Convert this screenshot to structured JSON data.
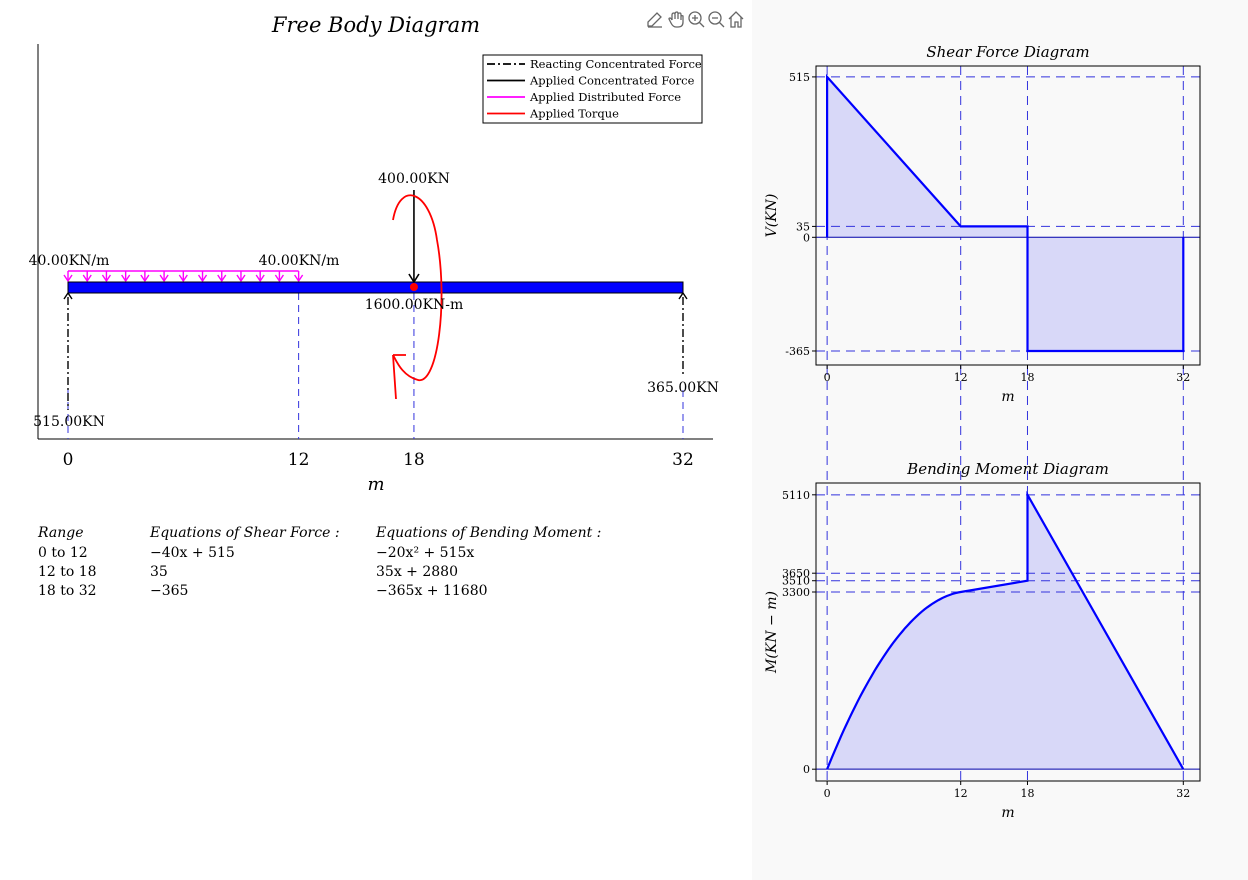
{
  "toolbar": {
    "icons": [
      "edit-icon",
      "pan-hand-icon",
      "zoom-in-icon",
      "zoom-out-icon",
      "home-icon"
    ]
  },
  "free_body": {
    "title": "Free Body Diagram",
    "xlabel": "m",
    "ticks": [
      "0",
      "12",
      "18",
      "32"
    ],
    "legend": [
      {
        "label": "Reacting Concentrated Force",
        "color": "#000000",
        "style": "dashdot"
      },
      {
        "label": "Applied Concentrated Force",
        "color": "#000000",
        "style": "solid"
      },
      {
        "label": "Applied Distributed Force",
        "color": "#ff00ff",
        "style": "solid"
      },
      {
        "label": "Applied Torque",
        "color": "#ff0000",
        "style": "solid"
      }
    ],
    "labels": {
      "dist_left": "40.00KN/m",
      "dist_right": "40.00KN/m",
      "point_force": "400.00KN",
      "torque": "1600.00KN-m",
      "reaction_left": "515.00KN",
      "reaction_right": "365.00KN"
    }
  },
  "equations": {
    "headers": [
      "Range",
      "Equations of Shear Force :",
      "Equations of Bending Moment :"
    ],
    "rows": [
      {
        "range": "0 to 12",
        "shear": "−40x + 515",
        "moment": "−20x² + 515x"
      },
      {
        "range": "12 to 18",
        "shear": "35",
        "moment": "35x + 2880"
      },
      {
        "range": "18 to 32",
        "shear": "−365",
        "moment": "−365x + 11680"
      }
    ]
  },
  "chart_data": [
    {
      "type": "area",
      "title": "Shear Force Diagram",
      "xlabel": "m",
      "ylabel": "V(KN)",
      "xticks": [
        0,
        12,
        18,
        32
      ],
      "yticks": [
        515,
        35,
        0,
        -365
      ],
      "xlim": [
        -1,
        33.5
      ],
      "ylim": [
        -410,
        550
      ],
      "color": "#0000ff",
      "fill": "#d8d8f8",
      "points": [
        [
          0,
          0
        ],
        [
          0,
          515
        ],
        [
          12,
          35
        ],
        [
          18,
          35
        ],
        [
          18,
          -365
        ],
        [
          32,
          -365
        ],
        [
          32,
          0
        ]
      ]
    },
    {
      "type": "area",
      "title": "Bending Moment Diagram",
      "xlabel": "m",
      "ylabel": "M(KN − m)",
      "xticks": [
        0,
        12,
        18,
        32
      ],
      "yticks": [
        5110,
        3650,
        3510,
        3300,
        0
      ],
      "xlim": [
        -1,
        33.5
      ],
      "ylim": [
        -220,
        5330
      ],
      "color": "#0000ff",
      "fill": "#d8d8f8",
      "segments": [
        {
          "range": [
            0,
            12
          ],
          "eq": "-20x^2+515x"
        },
        {
          "range": [
            12,
            18
          ],
          "eq": "35x+2880"
        },
        {
          "range": [
            18,
            32
          ],
          "eq": "-365x+11680"
        }
      ]
    }
  ]
}
